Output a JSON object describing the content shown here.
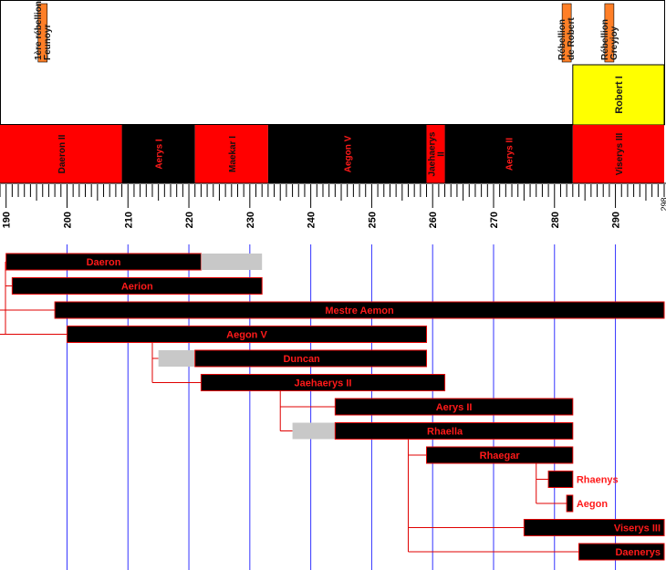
{
  "colors": {
    "red": "#ff0000",
    "black": "#000000",
    "yellow": "#ffff00",
    "orange": "#ff7f27",
    "gray": "#c8c8c8",
    "grid": "#3333ff",
    "line": "#e00000",
    "label_red": "#ff1a1a"
  },
  "axis": {
    "start": 189,
    "end": 298,
    "major_ticks": [
      190,
      200,
      210,
      220,
      230,
      240,
      250,
      260,
      270,
      280,
      290
    ],
    "tick_labels": [
      "190",
      "200",
      "210",
      "220",
      "230",
      "240",
      "250",
      "260",
      "270",
      "280",
      "290"
    ],
    "end_label": "298"
  },
  "events": [
    {
      "label": [
        "1ère rébellion",
        "Feunoyr"
      ],
      "year": 196
    },
    {
      "label": [
        "Rébellion",
        "de Robert"
      ],
      "year": 282
    },
    {
      "label": [
        "Rébellion",
        "Greyjoy"
      ],
      "year": 289
    }
  ],
  "usurper": {
    "label": "Robert I",
    "start": 283,
    "end": 298
  },
  "reigns": [
    {
      "name": "Daeron II",
      "start": 189,
      "end": 209,
      "color": "red"
    },
    {
      "name": "Aerys I",
      "start": 209,
      "end": 221,
      "color": "black"
    },
    {
      "name": "Maekar I",
      "start": 221,
      "end": 233,
      "color": "red"
    },
    {
      "name": "Aegon V",
      "start": 233,
      "end": 259,
      "color": "black"
    },
    {
      "name_lines": [
        "Jaehaerys",
        "II"
      ],
      "start": 259,
      "end": 262,
      "color": "red"
    },
    {
      "name": "Aerys II",
      "start": 262,
      "end": 283,
      "color": "black"
    },
    {
      "name": "Viserys III",
      "start": 283,
      "end": 298,
      "color": "red"
    }
  ],
  "people": [
    {
      "name": "Daeron",
      "birth": 190,
      "gray_start": 222,
      "end": 232
    },
    {
      "name": "Aerion",
      "birth": 191,
      "end": 232
    },
    {
      "name": "Mestre Aemon",
      "birth": 198,
      "end": 298
    },
    {
      "name": "Aegon V",
      "birth": 200,
      "end": 259
    },
    {
      "name": "Duncan",
      "birth": 215,
      "gray_start": 215,
      "black_start": 221,
      "end": 259
    },
    {
      "name": "Jaehaerys II",
      "birth": 222,
      "end": 262
    },
    {
      "name": "Aerys II",
      "birth": 244,
      "end": 283
    },
    {
      "name": "Rhaella",
      "birth": 237,
      "gray_start": 237,
      "black_start": 244,
      "end": 283
    },
    {
      "name": "Rhaegar",
      "birth": 259,
      "end": 283
    },
    {
      "name": "Rhaenys",
      "birth": 279,
      "end": 283
    },
    {
      "name": "Aegon",
      "birth": 282,
      "end": 283
    },
    {
      "name": "Viserys III",
      "birth": 275,
      "end": 298
    },
    {
      "name": "Daenerys",
      "birth": 284,
      "end": 298
    }
  ]
}
